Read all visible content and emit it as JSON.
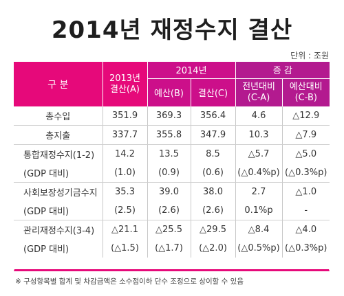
{
  "title": "2014년 재정수지 결산",
  "unit": "단위 : 조원",
  "header": {
    "category": "구 분",
    "y2013_line1": "2013년",
    "y2013_line2": "결산(A)",
    "y2014": "2014년",
    "budget": "예산(B)",
    "settle": "결산(C)",
    "change": "증 감",
    "vs_prev_line1": "전년대비",
    "vs_prev_line2": "(C-A)",
    "vs_budget_line1": "예산대비",
    "vs_budget_line2": "(C-B)"
  },
  "rows": [
    {
      "label": "총수입",
      "center": true,
      "v2013": "351.9",
      "budget": "369.3",
      "settle": "356.4",
      "vs_prev": "4.6",
      "vs_budget": "△12.9"
    },
    {
      "label": "총지출",
      "center": true,
      "v2013": "337.7",
      "budget": "355.8",
      "settle": "347.9",
      "vs_prev": "10.3",
      "vs_budget": "△7.9"
    },
    {
      "label": "통합재정수지(1-2)",
      "v2013": "14.2",
      "budget": "13.5",
      "settle": "8.5",
      "vs_prev": "△5.7",
      "vs_budget": "△5.0"
    },
    {
      "label": "(GDP 대비)",
      "v2013": "(1.0)",
      "budget": "(0.9)",
      "settle": "(0.6)",
      "vs_prev": "(△0.4%p)",
      "vs_budget": "(△0.3%p)"
    },
    {
      "label": "사회보장성기금수지",
      "v2013": "35.3",
      "budget": "39.0",
      "settle": "38.0",
      "vs_prev": "2.7",
      "vs_budget": "△1.0"
    },
    {
      "label": "(GDP 대비)",
      "v2013": "(2.5)",
      "budget": "(2.6)",
      "settle": "(2.6)",
      "vs_prev": "0.1%p",
      "vs_budget": "-"
    },
    {
      "label": "관리재정수지(3-4)",
      "v2013": "△21.1",
      "budget": "△25.5",
      "settle": "△29.5",
      "vs_prev": "△8.4",
      "vs_budget": "△4.0"
    },
    {
      "label": "(GDP 대비)",
      "v2013": "(△1.5)",
      "budget": "(△1.7)",
      "settle": "(△2.0)",
      "vs_prev": "(△0.5%p)",
      "vs_budget": "(△0.3%p)"
    }
  ],
  "footnote": "※ 구성항목별 합계 및 차감금액은 소수점이하 단수 조정으로 상이할 수 있음"
}
